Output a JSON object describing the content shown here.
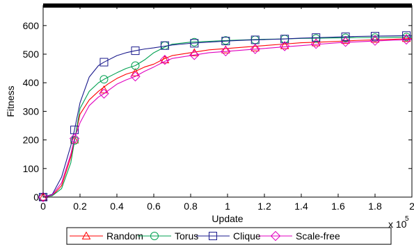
{
  "chart_data": {
    "type": "line",
    "xlabel": "Update",
    "ylabel": "Fitness",
    "x_multiplier_label": "x 10",
    "x_multiplier_exponent": "5",
    "xlim": [
      0,
      2
    ],
    "ylim": [
      0,
      670
    ],
    "x_ticks": [
      0,
      0.2,
      0.4,
      0.6,
      0.8,
      1,
      1.2,
      1.4,
      1.6,
      1.8,
      2
    ],
    "x_tick_labels": [
      "0",
      "0.2",
      "0.4",
      "0.6",
      "0.8",
      "1",
      "1.2",
      "1.4",
      "1.6",
      "1.8",
      "2"
    ],
    "y_ticks": [
      0,
      100,
      200,
      300,
      400,
      500,
      600
    ],
    "y_tick_labels": [
      "0",
      "100",
      "200",
      "300",
      "400",
      "500",
      "600"
    ],
    "grid": false,
    "legend_position": "bottom-outside",
    "series": [
      {
        "name": "Random",
        "color": "#ff0000",
        "marker": "triangle",
        "x": [
          0,
          0.05,
          0.1,
          0.15,
          0.17,
          0.2,
          0.25,
          0.3,
          0.35,
          0.4,
          0.45,
          0.5,
          0.55,
          0.6,
          0.66,
          0.7,
          0.8,
          0.9,
          1.0,
          1.1,
          1.2,
          1.3,
          1.4,
          1.5,
          1.6,
          1.7,
          1.8,
          1.9,
          2.0
        ],
        "y": [
          0,
          5,
          40,
          140,
          200,
          290,
          340,
          370,
          395,
          415,
          430,
          440,
          455,
          465,
          485,
          495,
          505,
          515,
          520,
          525,
          530,
          535,
          540,
          542,
          545,
          548,
          550,
          552,
          555
        ],
        "markers_x": [
          0,
          0.17,
          0.33,
          0.5,
          0.66,
          0.82,
          0.99,
          1.15,
          1.31,
          1.48,
          1.64,
          1.8,
          1.97
        ],
        "markers_y": [
          0,
          200,
          375,
          435,
          480,
          505,
          515,
          522,
          530,
          540,
          548,
          552,
          555
        ]
      },
      {
        "name": "Torus",
        "color": "#00a050",
        "marker": "circle",
        "x": [
          0,
          0.05,
          0.1,
          0.15,
          0.17,
          0.2,
          0.25,
          0.3,
          0.33,
          0.4,
          0.45,
          0.5,
          0.55,
          0.6,
          0.66,
          0.7,
          0.8,
          0.9,
          1.0,
          1.1,
          1.2,
          1.3,
          1.4,
          1.5,
          1.6,
          1.7,
          1.8,
          1.9,
          2.0
        ],
        "y": [
          0,
          5,
          30,
          120,
          195,
          310,
          370,
          400,
          412,
          435,
          450,
          460,
          480,
          505,
          525,
          535,
          542,
          545,
          548,
          550,
          552,
          553,
          555,
          556,
          557,
          558,
          558,
          559,
          560
        ],
        "markers_x": [
          0,
          0.17,
          0.33,
          0.5,
          0.66,
          0.82,
          0.99,
          1.15,
          1.31,
          1.48,
          1.64,
          1.8,
          1.97
        ],
        "markers_y": [
          0,
          198,
          412,
          460,
          530,
          542,
          548,
          550,
          553,
          555,
          557,
          558,
          560
        ]
      },
      {
        "name": "Clique",
        "color": "#1a1a8c",
        "marker": "square",
        "x": [
          0,
          0.05,
          0.1,
          0.15,
          0.17,
          0.2,
          0.25,
          0.3,
          0.33,
          0.4,
          0.45,
          0.5,
          0.55,
          0.6,
          0.66,
          0.7,
          0.8,
          0.9,
          1.0,
          1.1,
          1.2,
          1.3,
          1.4,
          1.5,
          1.6,
          1.7,
          1.8,
          1.9,
          2.0
        ],
        "y": [
          0,
          10,
          70,
          180,
          235,
          330,
          420,
          460,
          472,
          495,
          505,
          512,
          518,
          522,
          528,
          532,
          538,
          542,
          546,
          549,
          551,
          553,
          556,
          558,
          560,
          562,
          563,
          564,
          565
        ],
        "markers_x": [
          0,
          0.17,
          0.33,
          0.5,
          0.66,
          0.82,
          0.99,
          1.15,
          1.31,
          1.48,
          1.64,
          1.8,
          1.97
        ],
        "markers_y": [
          0,
          235,
          472,
          512,
          530,
          538,
          546,
          550,
          553,
          558,
          561,
          563,
          565
        ]
      },
      {
        "name": "Scale-free",
        "color": "#e000c0",
        "marker": "diamond",
        "x": [
          0,
          0.05,
          0.1,
          0.15,
          0.17,
          0.2,
          0.25,
          0.3,
          0.33,
          0.4,
          0.45,
          0.5,
          0.55,
          0.6,
          0.66,
          0.7,
          0.8,
          0.9,
          1.0,
          1.1,
          1.2,
          1.3,
          1.4,
          1.5,
          1.6,
          1.7,
          1.8,
          1.9,
          2.0
        ],
        "y": [
          0,
          8,
          50,
          150,
          205,
          260,
          320,
          350,
          362,
          395,
          410,
          422,
          440,
          455,
          475,
          485,
          495,
          505,
          510,
          515,
          520,
          525,
          530,
          535,
          540,
          543,
          546,
          549,
          551
        ],
        "markers_x": [
          0,
          0.17,
          0.33,
          0.5,
          0.66,
          0.82,
          0.99,
          1.15,
          1.31,
          1.48,
          1.64,
          1.8,
          1.97
        ],
        "markers_y": [
          0,
          205,
          362,
          422,
          480,
          497,
          510,
          518,
          528,
          536,
          543,
          547,
          551
        ]
      }
    ]
  }
}
